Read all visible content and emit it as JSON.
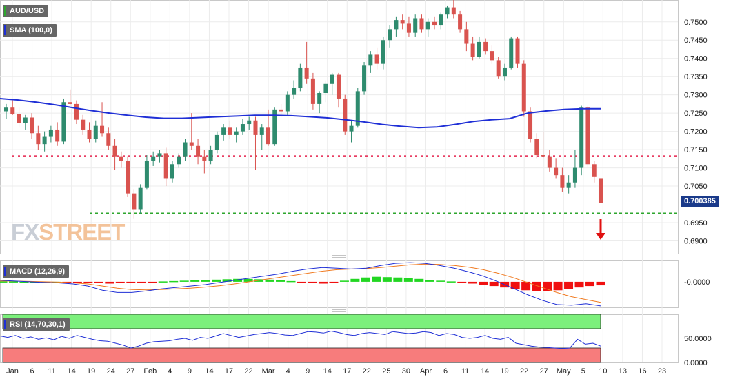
{
  "chart_data": {
    "type": "candlestick",
    "symbol": "AUD/USD",
    "current_price": "0.700385",
    "x_ticks": [
      "Jan",
      "6",
      "11",
      "14",
      "19",
      "24",
      "27",
      "Feb",
      "4",
      "9",
      "14",
      "17",
      "22",
      "Mar",
      "4",
      "9",
      "14",
      "17",
      "22",
      "25",
      "30",
      "Apr",
      "6",
      "11",
      "14",
      "19",
      "22",
      "27",
      "May",
      "5",
      "10",
      "13",
      "16",
      "23"
    ],
    "y_ticks": [
      "0.7500",
      "0.7450",
      "0.7400",
      "0.7350",
      "0.7300",
      "0.7250",
      "0.7200",
      "0.7150",
      "0.7100",
      "0.7050",
      "0.6950",
      "0.6900"
    ],
    "ylim": [
      0.6865,
      0.756
    ],
    "candles": [
      [
        0.7255,
        0.7275,
        0.7235,
        0.7265
      ],
      [
        0.7265,
        0.7285,
        0.7245,
        0.7248
      ],
      [
        0.7248,
        0.7265,
        0.721,
        0.7222
      ],
      [
        0.7222,
        0.7245,
        0.7205,
        0.7238
      ],
      [
        0.7238,
        0.725,
        0.718,
        0.7195
      ],
      [
        0.7195,
        0.7215,
        0.715,
        0.7165
      ],
      [
        0.7165,
        0.72,
        0.7145,
        0.7185
      ],
      [
        0.7185,
        0.7215,
        0.717,
        0.7205
      ],
      [
        0.7205,
        0.7225,
        0.716,
        0.7172
      ],
      [
        0.7172,
        0.729,
        0.7165,
        0.728
      ],
      [
        0.728,
        0.7315,
        0.727,
        0.7275
      ],
      [
        0.7275,
        0.7285,
        0.722,
        0.7232
      ],
      [
        0.7232,
        0.7245,
        0.719,
        0.7205
      ],
      [
        0.7205,
        0.7225,
        0.717,
        0.718
      ],
      [
        0.718,
        0.723,
        0.717,
        0.7215
      ],
      [
        0.7215,
        0.728,
        0.7185,
        0.7195
      ],
      [
        0.7195,
        0.721,
        0.715,
        0.716
      ],
      [
        0.716,
        0.718,
        0.7095,
        0.713
      ],
      [
        0.713,
        0.7145,
        0.71,
        0.712
      ],
      [
        0.712,
        0.713,
        0.702,
        0.703
      ],
      [
        0.703,
        0.704,
        0.696,
        0.6985
      ],
      [
        0.6985,
        0.7055,
        0.6975,
        0.7045
      ],
      [
        0.7045,
        0.7135,
        0.704,
        0.712
      ],
      [
        0.712,
        0.7145,
        0.7105,
        0.713
      ],
      [
        0.713,
        0.715,
        0.7115,
        0.714
      ],
      [
        0.714,
        0.7155,
        0.705,
        0.707
      ],
      [
        0.707,
        0.712,
        0.706,
        0.711
      ],
      [
        0.711,
        0.714,
        0.71,
        0.713
      ],
      [
        0.713,
        0.718,
        0.712,
        0.717
      ],
      [
        0.717,
        0.725,
        0.715,
        0.716
      ],
      [
        0.716,
        0.718,
        0.711,
        0.713
      ],
      [
        0.713,
        0.715,
        0.7085,
        0.712
      ],
      [
        0.712,
        0.716,
        0.711,
        0.715
      ],
      [
        0.715,
        0.72,
        0.714,
        0.719
      ],
      [
        0.719,
        0.722,
        0.7175,
        0.721
      ],
      [
        0.721,
        0.723,
        0.718,
        0.719
      ],
      [
        0.719,
        0.721,
        0.717,
        0.72
      ],
      [
        0.72,
        0.7235,
        0.719,
        0.722
      ],
      [
        0.722,
        0.724,
        0.7205,
        0.723
      ],
      [
        0.723,
        0.724,
        0.7095,
        0.719
      ],
      [
        0.719,
        0.722,
        0.715,
        0.721
      ],
      [
        0.721,
        0.726,
        0.716,
        0.7165
      ],
      [
        0.7165,
        0.7265,
        0.716,
        0.726
      ],
      [
        0.726,
        0.7275,
        0.724,
        0.7255
      ],
      [
        0.7255,
        0.731,
        0.7245,
        0.73
      ],
      [
        0.73,
        0.734,
        0.729,
        0.732
      ],
      [
        0.732,
        0.7385,
        0.731,
        0.7375
      ],
      [
        0.7375,
        0.7445,
        0.733,
        0.7345
      ],
      [
        0.7345,
        0.736,
        0.726,
        0.7275
      ],
      [
        0.7275,
        0.731,
        0.725,
        0.7305
      ],
      [
        0.7305,
        0.734,
        0.728,
        0.733
      ],
      [
        0.733,
        0.736,
        0.73,
        0.7355
      ],
      [
        0.7355,
        0.736,
        0.7265,
        0.729
      ],
      [
        0.729,
        0.73,
        0.719,
        0.72
      ],
      [
        0.72,
        0.723,
        0.717,
        0.7215
      ],
      [
        0.7215,
        0.732,
        0.721,
        0.731
      ],
      [
        0.731,
        0.739,
        0.73,
        0.738
      ],
      [
        0.738,
        0.742,
        0.736,
        0.741
      ],
      [
        0.741,
        0.743,
        0.737,
        0.7385
      ],
      [
        0.7385,
        0.746,
        0.737,
        0.745
      ],
      [
        0.745,
        0.749,
        0.743,
        0.748
      ],
      [
        0.748,
        0.7515,
        0.746,
        0.7505
      ],
      [
        0.7505,
        0.752,
        0.748,
        0.7495
      ],
      [
        0.7495,
        0.7515,
        0.746,
        0.747
      ],
      [
        0.747,
        0.752,
        0.746,
        0.751
      ],
      [
        0.751,
        0.752,
        0.747,
        0.748
      ],
      [
        0.748,
        0.751,
        0.746,
        0.75
      ],
      [
        0.75,
        0.7515,
        0.748,
        0.749
      ],
      [
        0.749,
        0.7525,
        0.748,
        0.752
      ],
      [
        0.752,
        0.7545,
        0.751,
        0.754
      ],
      [
        0.754,
        0.756,
        0.751,
        0.752
      ],
      [
        0.752,
        0.753,
        0.747,
        0.748
      ],
      [
        0.748,
        0.75,
        0.742,
        0.744
      ],
      [
        0.744,
        0.746,
        0.7395,
        0.7405
      ],
      [
        0.7405,
        0.746,
        0.74,
        0.7445
      ],
      [
        0.7445,
        0.7455,
        0.741,
        0.742
      ],
      [
        0.742,
        0.7435,
        0.7385,
        0.7395
      ],
      [
        0.7395,
        0.7405,
        0.7345,
        0.735
      ],
      [
        0.735,
        0.7385,
        0.734,
        0.7375
      ],
      [
        0.7375,
        0.746,
        0.737,
        0.7455
      ],
      [
        0.7455,
        0.746,
        0.7375,
        0.7385
      ],
      [
        0.7385,
        0.7395,
        0.724,
        0.7255
      ],
      [
        0.7255,
        0.7265,
        0.717,
        0.718
      ],
      [
        0.718,
        0.7195,
        0.7125,
        0.7135
      ],
      [
        0.7135,
        0.72,
        0.7125,
        0.713
      ],
      [
        0.713,
        0.715,
        0.709,
        0.71
      ],
      [
        0.71,
        0.7125,
        0.707,
        0.708
      ],
      [
        0.708,
        0.71,
        0.7035,
        0.7045
      ],
      [
        0.7045,
        0.708,
        0.703,
        0.706
      ],
      [
        0.706,
        0.715,
        0.7045,
        0.71
      ],
      [
        0.71,
        0.727,
        0.708,
        0.7265
      ],
      [
        0.7265,
        0.727,
        0.71,
        0.711
      ],
      [
        0.711,
        0.712,
        0.706,
        0.7075
      ],
      [
        0.707,
        0.707,
        0.7003,
        0.7004
      ]
    ],
    "sma": {
      "label": "SMA (100,0)",
      "color": "#1f2fd6",
      "values": [
        0.729,
        0.7286,
        0.728,
        0.7273,
        0.7265,
        0.7257,
        0.725,
        0.7244,
        0.7239,
        0.7236,
        0.7236,
        0.7238,
        0.724,
        0.7242,
        0.7244,
        0.7244,
        0.7243,
        0.724,
        0.7237,
        0.7232,
        0.7226,
        0.7219,
        0.7214,
        0.721,
        0.7212,
        0.7219,
        0.7227,
        0.7232,
        0.7235,
        0.725,
        0.7256,
        0.726,
        0.7262,
        0.7262
      ]
    },
    "resistance_line": {
      "value": 0.7132,
      "color": "#e5234d",
      "style": "dotted"
    },
    "support_line": {
      "value": 0.6975,
      "color": "#2ea62e",
      "style": "dashed"
    },
    "macd": {
      "label": "MACD (12,26,9)",
      "y_ticks": [
        "-0.0000"
      ],
      "ylim": [
        -0.0072,
        0.006
      ],
      "histogram": [
        0.0001,
        0.0001,
        0.0,
        0.0,
        0.0,
        0.0,
        -0.0001,
        -0.0002,
        -0.0003,
        -0.0004,
        -0.0005,
        -0.0004,
        -0.0003,
        -0.0002,
        -0.0001,
        0.0001,
        0.0002,
        0.0003,
        0.0004,
        0.0005,
        0.0006,
        0.0007,
        0.0008,
        0.0008,
        0.0007,
        0.0006,
        0.0004,
        0.0002,
        -0.0001,
        -0.0004,
        -0.0005,
        -0.0002,
        0.0003,
        0.0008,
        0.0012,
        0.0014,
        0.0013,
        0.0012,
        0.001,
        0.0008,
        0.0005,
        0.0003,
        0.0001,
        -0.0002,
        -0.0005,
        -0.0008,
        -0.0012,
        -0.0016,
        -0.002,
        -0.0024,
        -0.0026,
        -0.0026,
        -0.0024,
        -0.002,
        -0.0016,
        -0.0012,
        -0.001
      ],
      "macd_line": [
        0.0004,
        0.0002,
        0.0,
        -0.0002,
        -0.0003,
        -0.0006,
        -0.0012,
        -0.0024,
        -0.003,
        -0.003,
        -0.0026,
        -0.002,
        -0.0016,
        -0.0012,
        -0.0008,
        -0.0002,
        0.0004,
        0.001,
        0.0016,
        0.0022,
        0.003,
        0.0036,
        0.004,
        0.0038,
        0.0036,
        0.0038,
        0.0046,
        0.0052,
        0.0054,
        0.0052,
        0.0046,
        0.0038,
        0.0028,
        0.0016,
        0.0,
        -0.0018,
        -0.0036,
        -0.0052,
        -0.0064,
        -0.0066,
        -0.0062,
        -0.0068
      ],
      "signal_line": [
        0.0002,
        0.0002,
        0.0001,
        0.0,
        -0.0001,
        -0.0003,
        -0.0006,
        -0.0012,
        -0.0018,
        -0.0022,
        -0.0023,
        -0.0022,
        -0.002,
        -0.0018,
        -0.0015,
        -0.0011,
        -0.0006,
        0.0,
        0.0006,
        0.0012,
        0.0018,
        0.0024,
        0.003,
        0.0034,
        0.0036,
        0.0037,
        0.004,
        0.0044,
        0.0048,
        0.005,
        0.0049,
        0.0046,
        0.0041,
        0.0034,
        0.0024,
        0.0012,
        -0.0002,
        -0.0016,
        -0.003,
        -0.0042,
        -0.005,
        -0.0058
      ]
    },
    "rsi": {
      "label": "RSI (14,70,30,1)",
      "y_ticks": [
        "50.0000",
        "0.0000"
      ],
      "ylim": [
        0,
        100
      ],
      "overbought": 70,
      "oversold": 30,
      "values": [
        55,
        52,
        56,
        50,
        53,
        48,
        51,
        47,
        54,
        50,
        56,
        52,
        48,
        45,
        44,
        40,
        36,
        30,
        34,
        40,
        43,
        44,
        45,
        48,
        50,
        46,
        52,
        50,
        55,
        60,
        56,
        52,
        55,
        58,
        60,
        62,
        60,
        57,
        56,
        60,
        64,
        63,
        61,
        65,
        62,
        58,
        56,
        60,
        62,
        60,
        58,
        64,
        62,
        60,
        61,
        64,
        62,
        56,
        60,
        58,
        52,
        50,
        52,
        56,
        50,
        48,
        52,
        40,
        37,
        34,
        32,
        31,
        30,
        29,
        30,
        48,
        38,
        40,
        34
      ]
    }
  }
}
